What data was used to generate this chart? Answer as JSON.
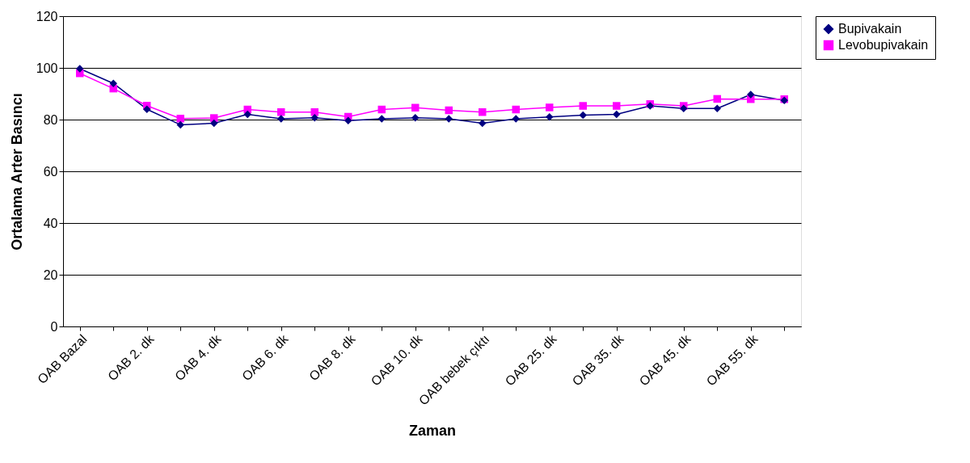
{
  "chart_data": {
    "type": "line",
    "xlabel": "Zaman",
    "ylabel": "Ortalama Arter Basıncı",
    "categories": [
      "OAB Bazal",
      null,
      "OAB 2. dk",
      null,
      "OAB 4. dk",
      null,
      "OAB 6. dk",
      null,
      "OAB 8. dk",
      null,
      "OAB 10. dk",
      null,
      "OAB bebek çıktı",
      null,
      "OAB 25. dk",
      null,
      "OAB 35. dk",
      null,
      "OAB 45. dk",
      null,
      "OAB 55. dk",
      null
    ],
    "series": [
      {
        "name": "Bupivakain",
        "color": "#000080",
        "marker": "diamond",
        "values": [
          99.7,
          94,
          84,
          78,
          78.6,
          82,
          80.3,
          80.7,
          79.6,
          80.3,
          80.7,
          80.3,
          78.6,
          80.3,
          81,
          81.7,
          82,
          85.3,
          84.3,
          84.3,
          89.7,
          87.4
        ]
      },
      {
        "name": "Levobupivakain",
        "color": "#ff00ff",
        "marker": "square",
        "values": [
          97.9,
          92,
          85.4,
          80.4,
          80.6,
          83.9,
          82.9,
          82.9,
          81.1,
          83.9,
          84.6,
          83.6,
          82.9,
          83.9,
          84.7,
          85.3,
          85.3,
          86,
          85.3,
          88,
          87.9,
          87.9
        ]
      }
    ],
    "ylim": [
      0,
      120
    ],
    "yticks": [
      0,
      20,
      40,
      60,
      80,
      100,
      120
    ],
    "grid": "y",
    "legend": "right",
    "line_style": "solid"
  }
}
